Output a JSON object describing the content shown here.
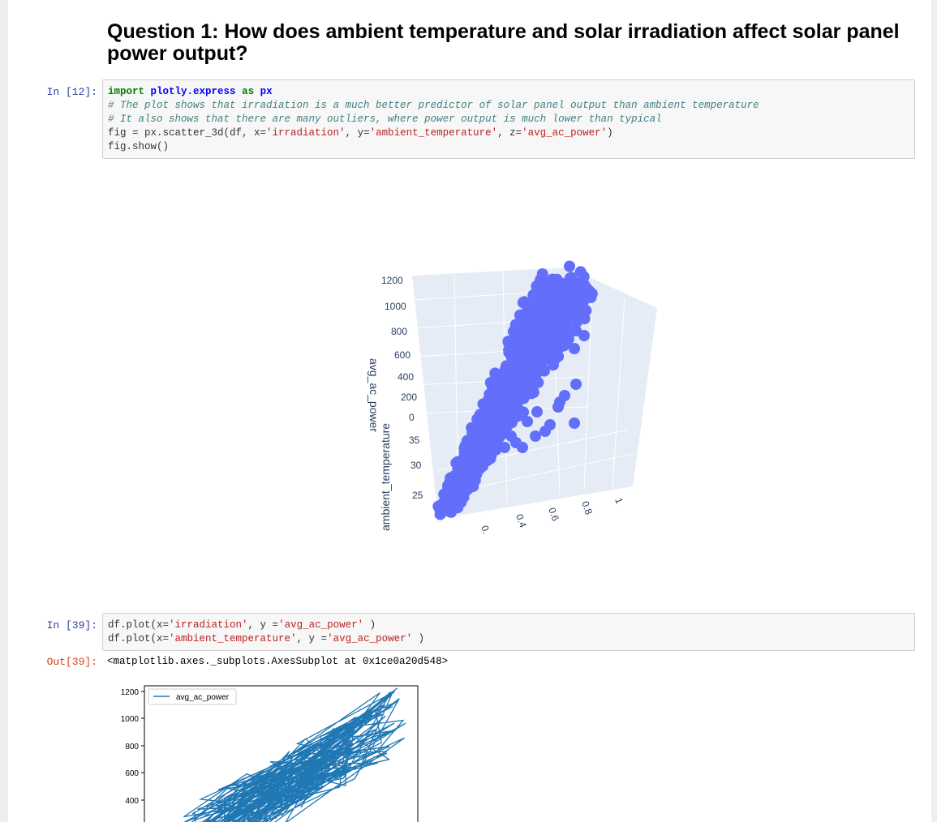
{
  "heading": "Question 1: How does ambient temperature and solar irradiation affect solar panel power output?",
  "cell1": {
    "prompt": "In [12]:",
    "code": {
      "line1": {
        "kw_import": "import",
        "module": "plotly.express",
        "kw_as": "as",
        "alias": "px"
      },
      "line2": "# The plot shows that irradiation is a much better predictor of solar panel output than ambient temperature",
      "line3": "# It also shows that there are many outliers, where power output is much lower than typical",
      "line4": {
        "pre": "fig = px.scatter_3d(df, x=",
        "s1": "'irradiation'",
        "mid1": ", y=",
        "s2": "'ambient_temperature'",
        "mid2": ", z=",
        "s3": "'avg_ac_power'",
        "post": ")"
      },
      "line5": "fig.show()"
    }
  },
  "plot3d": {
    "z_axis_title": "avg_ac_power",
    "y_axis_title": "ambient_temperature",
    "z_ticks": [
      "1200",
      "1000",
      "800",
      "600",
      "400",
      "200",
      "0"
    ],
    "y_ticks": [
      "35",
      "30",
      "25"
    ],
    "x_ticks": [
      "0.",
      "0.4",
      "0.6",
      "0.8",
      "1"
    ],
    "marker_color": "#636efa"
  },
  "cell2": {
    "prompt": "In [39]:",
    "line1": {
      "pre": "df.plot(x=",
      "s1": "'irradiation'",
      "mid": ", y =",
      "s2": "'avg_ac_power'",
      "post": " )"
    },
    "line2": {
      "pre": "df.plot(x=",
      "s1": "'ambient_temperature'",
      "mid": ", y =",
      "s2": "'avg_ac_power'",
      "post": " )"
    }
  },
  "out39": {
    "prompt": "Out[39]:",
    "text": "<matplotlib.axes._subplots.AxesSubplot at 0x1ce0a20d548>"
  },
  "mpl_plot": {
    "legend": "avg_ac_power",
    "y_ticks": [
      "1200",
      "1000",
      "800",
      "600",
      "400"
    ],
    "line_color": "#1f77b4"
  }
}
